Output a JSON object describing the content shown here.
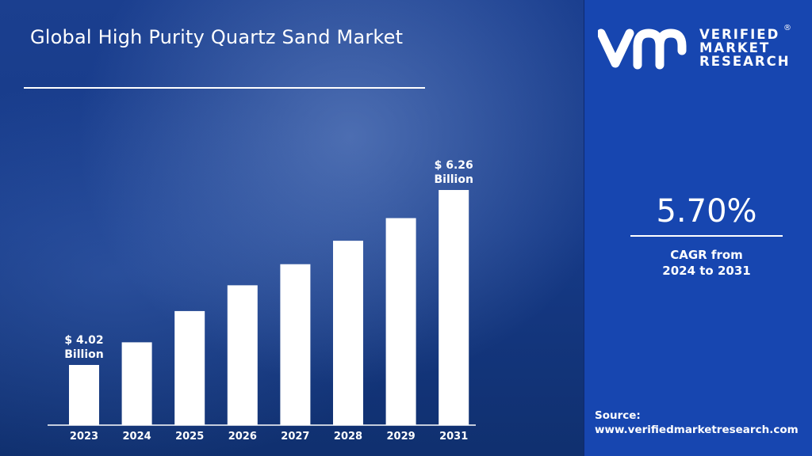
{
  "title": "Global High Purity Quartz Sand Market",
  "brand": {
    "line1": "VERIFIED",
    "line2": "MARKET",
    "line3": "RESEARCH",
    "registered": "®"
  },
  "cagr": {
    "value": "5.70%",
    "label_line1": "CAGR from",
    "label_line2": "2024 to 2031"
  },
  "source": {
    "label": "Source:",
    "url": "www.verifiedmarketresearch.com"
  },
  "colors": {
    "right_panel": "#1746b0",
    "bars": "#ffffff",
    "left_panel": "#163a88"
  },
  "chart_data": {
    "type": "bar",
    "title": "Global High Purity Quartz Sand Market",
    "categories": [
      "2023",
      "2024",
      "2025",
      "2026",
      "2027",
      "2028",
      "2029",
      "2031"
    ],
    "values": [
      4.02,
      4.31,
      4.71,
      5.04,
      5.31,
      5.61,
      5.9,
      6.26
    ],
    "unit": "USD Billion",
    "data_labels": [
      {
        "category": "2023",
        "line1": "$ 4.02",
        "line2": "Billion"
      },
      {
        "category": "2031",
        "line1": "$ 6.26",
        "line2": "Billion"
      }
    ],
    "xlabel": "",
    "ylabel": "",
    "grid": false,
    "legend": "none"
  }
}
